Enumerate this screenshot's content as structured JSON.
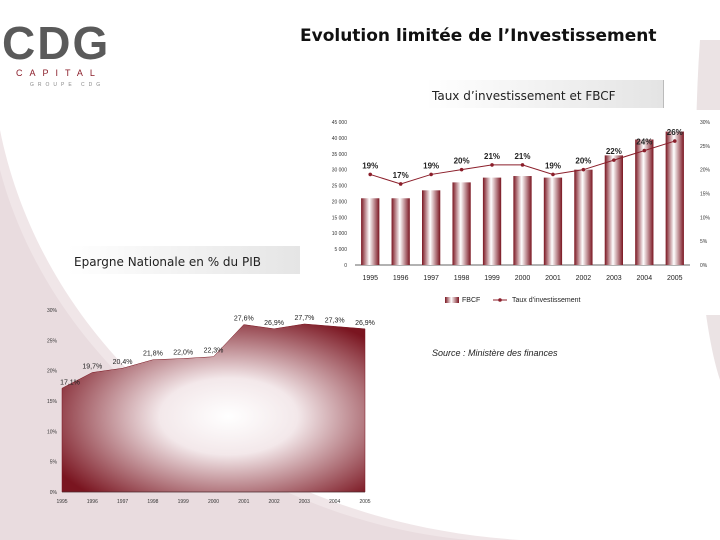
{
  "header": {
    "logo_text": "CDG",
    "logo_sub": "CAPITAL",
    "logo_sub2": "GROUPE CDG",
    "title": "Evolution limitée de l’Investissement"
  },
  "labels": {
    "chart1_label": "Taux d’investissement et FBCF",
    "chart2_label": "Epargne Nationale en % du PIB",
    "source": "Source : Ministère des finances"
  },
  "colors": {
    "bar_dark": "#7a1520",
    "bar_light": "#ffffff",
    "line": "#8b1e2a"
  },
  "chart_data": [
    {
      "type": "bar",
      "title": "Taux d’investissement et FBCF",
      "categories": [
        "1995",
        "1996",
        "1997",
        "1998",
        "1999",
        "2000",
        "2001",
        "2002",
        "2003",
        "2004",
        "2005"
      ],
      "series": [
        {
          "name": "FBCF",
          "kind": "bar",
          "axis": "left",
          "values": [
            21000,
            21000,
            23500,
            26000,
            27500,
            28000,
            27500,
            30000,
            34500,
            39500,
            42000
          ]
        },
        {
          "name": "Taux d'investissement",
          "kind": "line",
          "axis": "right",
          "values": [
            19,
            17,
            19,
            20,
            21,
            21,
            19,
            20,
            22,
            24,
            26
          ],
          "labels": [
            "19%",
            "17%",
            "19%",
            "20%",
            "21%",
            "21%",
            "19%",
            "20%",
            "22%",
            "24%",
            "26%"
          ]
        }
      ],
      "left_axis": {
        "ylim": [
          0,
          45000
        ],
        "ticks": [
          "0",
          "5 000",
          "10 000",
          "15 000",
          "20 000",
          "25 000",
          "30 000",
          "35 000",
          "40 000",
          "45 000"
        ]
      },
      "right_axis": {
        "ylim": [
          0,
          30
        ],
        "ticks": [
          "0%",
          "5%",
          "10%",
          "15%",
          "20%",
          "25%",
          "30%"
        ]
      },
      "legend": {
        "placement": "bottom",
        "items": [
          "FBCF",
          "Taux d’investissement"
        ]
      }
    },
    {
      "type": "area",
      "title": "Epargne Nationale en % du PIB",
      "categories": [
        "1995",
        "1996",
        "1997",
        "1998",
        "1999",
        "2000",
        "2001",
        "2002",
        "2003",
        "2004",
        "2005"
      ],
      "values": [
        17.1,
        19.7,
        20.4,
        21.8,
        22.0,
        22.3,
        27.6,
        26.9,
        27.7,
        27.3,
        26.9
      ],
      "data_labels": [
        "17,1%",
        "19,7%",
        "20,4%",
        "21,8%",
        "22,0%",
        "22,3%",
        "27,6%",
        "26,9%",
        "27,7%",
        "27,3%",
        "26,9%"
      ],
      "ylim": [
        0,
        30
      ],
      "yticks": [
        "0%",
        "5%",
        "10%",
        "15%",
        "20%",
        "25%",
        "30%"
      ]
    }
  ]
}
